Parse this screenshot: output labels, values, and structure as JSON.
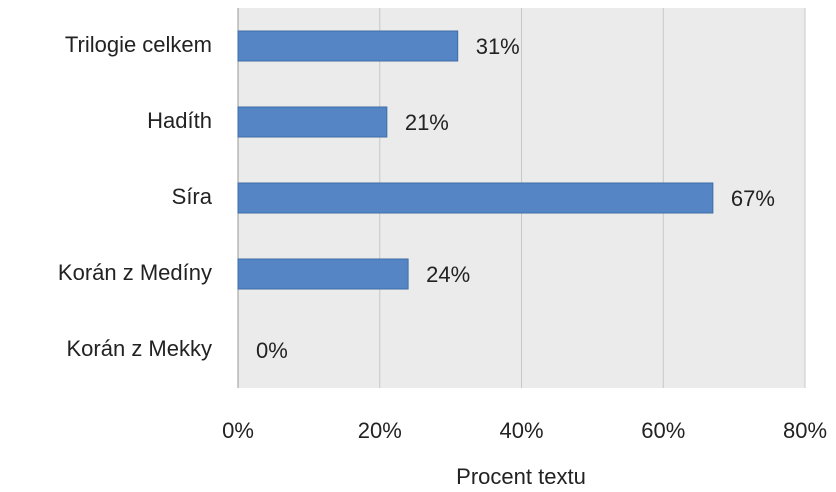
{
  "chart_data": {
    "type": "barh",
    "categories": [
      "Trilogie celkem",
      "Hadíth",
      "Síra",
      "Korán z Medíny",
      "Korán z Mekky"
    ],
    "values": [
      31,
      21,
      67,
      24,
      0
    ],
    "value_labels": [
      "31%",
      "21%",
      "67%",
      "24%",
      "0%"
    ],
    "color": "#5585c5",
    "xlabel": "Procent textu",
    "xlim": [
      0,
      80
    ],
    "xticks": [
      {
        "value": 0,
        "label": "0%"
      },
      {
        "value": 20,
        "label": "20%"
      },
      {
        "value": 40,
        "label": "40%"
      },
      {
        "value": 60,
        "label": "60%"
      },
      {
        "value": 80,
        "label": "80%"
      }
    ],
    "grid": true
  }
}
